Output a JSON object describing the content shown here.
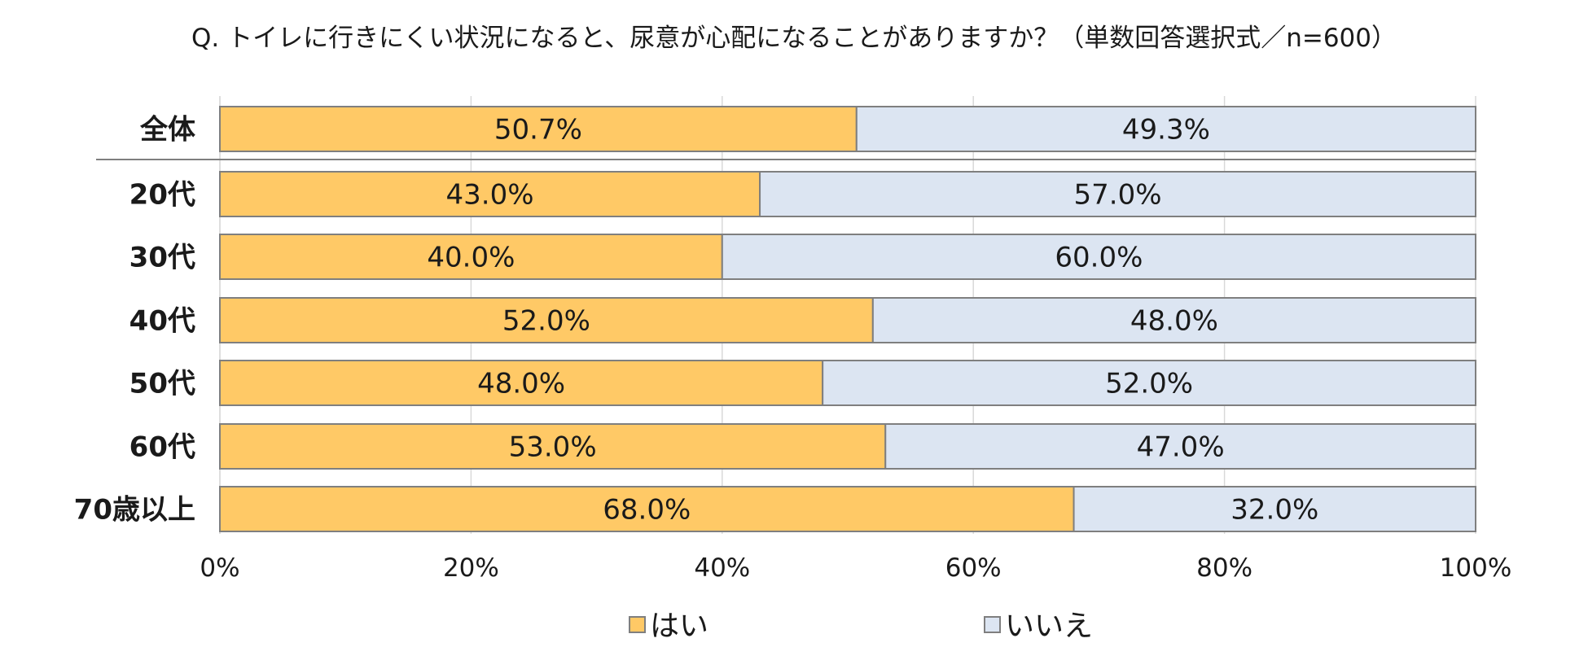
{
  "chart_data": {
    "type": "bar",
    "stacked": true,
    "orientation": "horizontal",
    "title": "Q. トイレに行きにくい状況になると、尿意が心配になることがありますか？（単数回答選択式／n=600）",
    "categories": [
      "全体",
      "20代",
      "30代",
      "40代",
      "50代",
      "60代",
      "70歳以上"
    ],
    "series": [
      {
        "name": "はい",
        "color": "#FFC966",
        "values": [
          50.7,
          43.0,
          40.0,
          52.0,
          48.0,
          53.0,
          68.0
        ],
        "labels": [
          "50.7%",
          "43.0%",
          "40.0%",
          "52.0%",
          "48.0%",
          "53.0%",
          "68.0%"
        ]
      },
      {
        "name": "いいえ",
        "color": "#DCE5F2",
        "values": [
          49.3,
          57.0,
          60.0,
          48.0,
          52.0,
          47.0,
          32.0
        ],
        "labels": [
          "49.3%",
          "57.0%",
          "60.0%",
          "48.0%",
          "52.0%",
          "47.0%",
          "32.0%"
        ]
      }
    ],
    "xlim": [
      0,
      100
    ],
    "x_ticks": [
      "0%",
      "20%",
      "40%",
      "60%",
      "80%",
      "100%"
    ],
    "grid": true,
    "legend_position": "bottom",
    "separator_after_first_category": true
  }
}
